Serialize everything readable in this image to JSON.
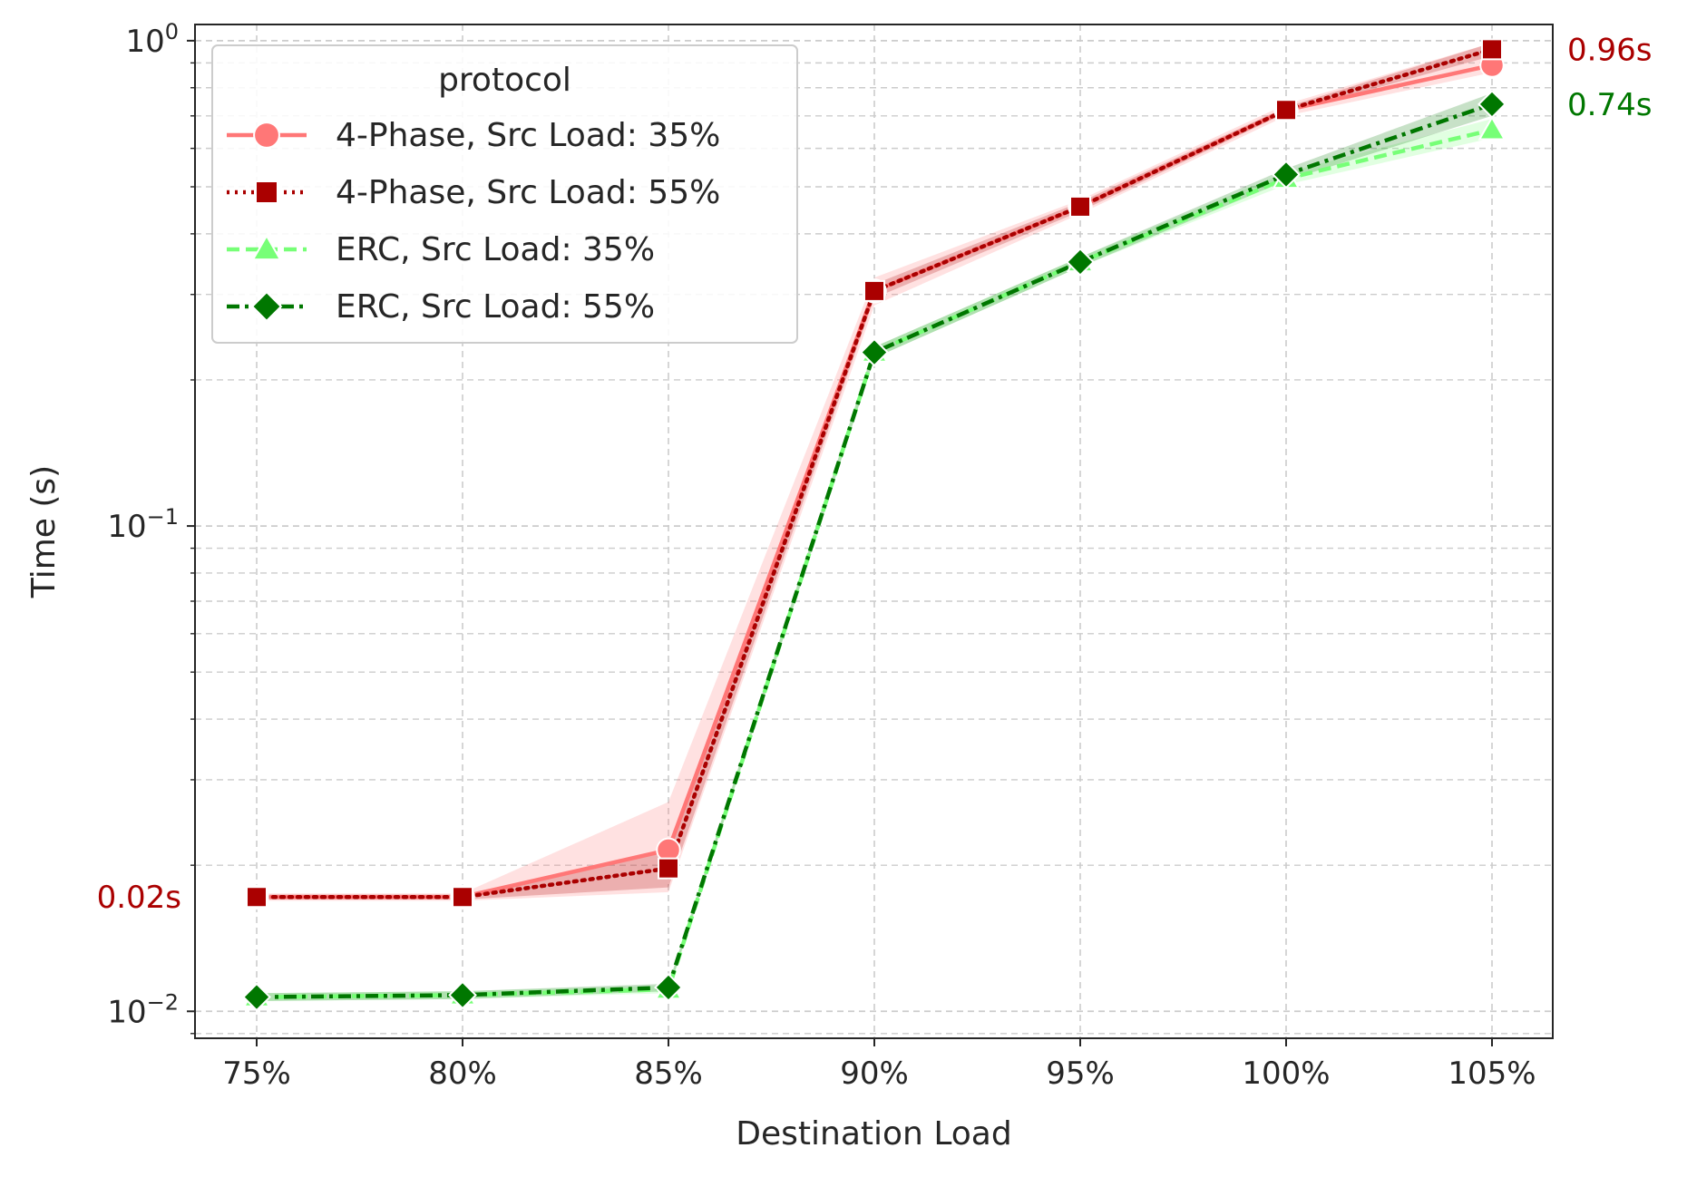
{
  "chart_data": {
    "type": "line",
    "xlabel": "Destination Load",
    "ylabel": "Time (s)",
    "yscale": "log",
    "ylim": [
      0.0088,
      1.08
    ],
    "grid": true,
    "categories": [
      "75%",
      "80%",
      "85%",
      "90%",
      "95%",
      "100%",
      "105%"
    ],
    "y_ticks": [
      {
        "value": 1,
        "base": "10",
        "exp": "0"
      },
      {
        "value": 0.1,
        "base": "10",
        "exp": "−1"
      },
      {
        "value": 0.01,
        "base": "10",
        "exp": "−2"
      }
    ],
    "legend": {
      "title": "protocol",
      "position": "top-left"
    },
    "series": [
      {
        "name": "4-Phase, Src Load: 35%",
        "color": "#ff7777",
        "marker": "circle",
        "dash": "solid",
        "values": [
          0.0172,
          0.0172,
          0.0215,
          0.305,
          0.455,
          0.72,
          0.89
        ],
        "band_low": [
          0.0169,
          0.0169,
          0.0176,
          0.285,
          0.44,
          0.7,
          0.86
        ],
        "band_high": [
          0.0175,
          0.0175,
          0.027,
          0.325,
          0.47,
          0.74,
          0.99
        ]
      },
      {
        "name": "4-Phase, Src Load: 55%",
        "color": "#aa0000",
        "marker": "square",
        "dash": "dotted",
        "values": [
          0.0172,
          0.0172,
          0.0197,
          0.305,
          0.455,
          0.72,
          0.96
        ],
        "band_low": [
          0.017,
          0.017,
          0.018,
          0.295,
          0.445,
          0.71,
          0.93
        ],
        "band_high": [
          0.0174,
          0.0174,
          0.0215,
          0.315,
          0.465,
          0.73,
          0.99
        ]
      },
      {
        "name": "ERC, Src Load: 35%",
        "color": "#77ff77",
        "marker": "triangle",
        "dash": "dashed",
        "values": [
          0.0107,
          0.0108,
          0.0111,
          0.228,
          0.35,
          0.52,
          0.655
        ],
        "band_low": [
          0.0105,
          0.0106,
          0.0109,
          0.222,
          0.342,
          0.505,
          0.63
        ],
        "band_high": [
          0.0109,
          0.011,
          0.0113,
          0.234,
          0.358,
          0.535,
          0.69
        ]
      },
      {
        "name": "ERC, Src Load: 55%",
        "color": "#007700",
        "marker": "diamond",
        "dash": "dashdot",
        "values": [
          0.0107,
          0.0108,
          0.0112,
          0.228,
          0.35,
          0.53,
          0.74
        ],
        "band_low": [
          0.0105,
          0.0106,
          0.011,
          0.222,
          0.342,
          0.515,
          0.7
        ],
        "band_high": [
          0.0109,
          0.011,
          0.0114,
          0.234,
          0.358,
          0.545,
          0.78
        ]
      }
    ],
    "annotations": [
      {
        "text": "0.02s",
        "value": 0.0172,
        "side": "left",
        "color": "#aa0000"
      },
      {
        "text": "0.96s",
        "value": 0.96,
        "side": "right",
        "color": "#aa0000"
      },
      {
        "text": "0.74s",
        "value": 0.74,
        "side": "right",
        "color": "#007700"
      }
    ]
  }
}
